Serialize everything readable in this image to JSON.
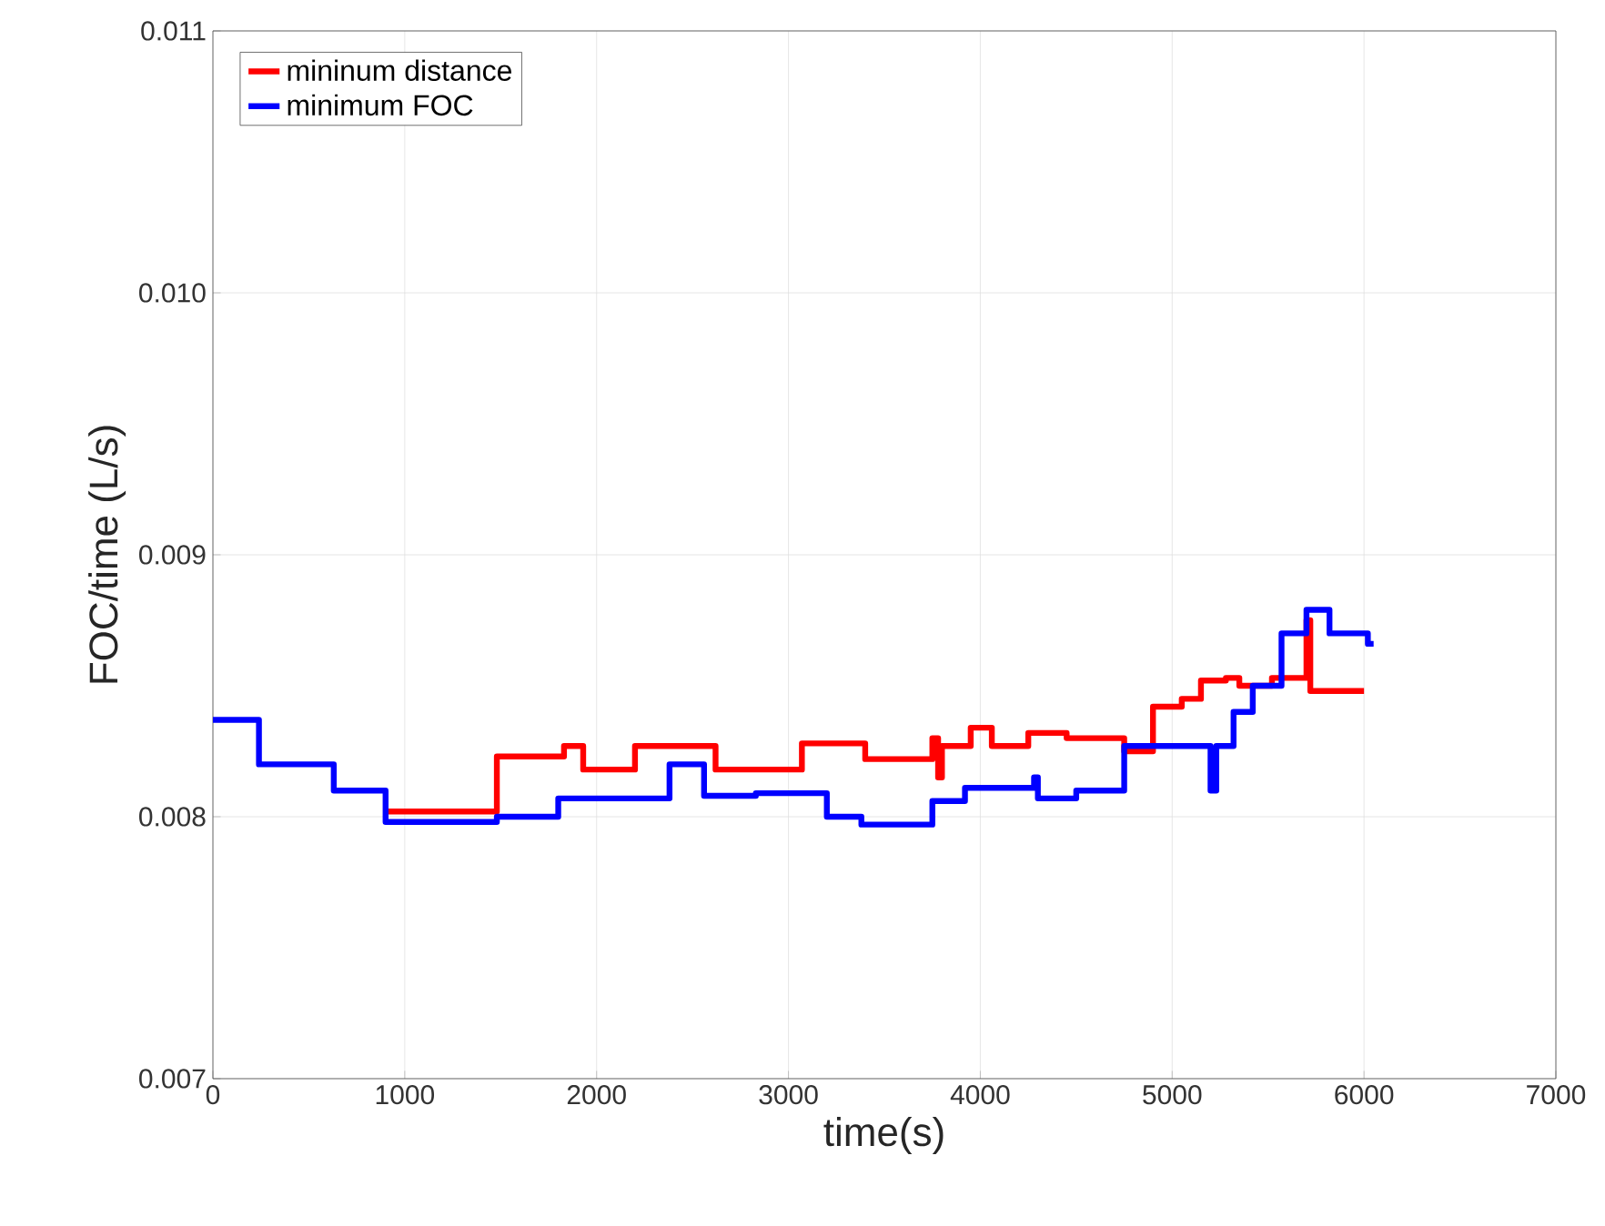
{
  "chart_data": {
    "type": "step",
    "xlabel": "time(s)",
    "ylabel": "FOC/time (L/s)",
    "xlim": [
      0,
      7000
    ],
    "ylim": [
      0.007,
      0.011
    ],
    "xticks": [
      0,
      1000,
      2000,
      3000,
      4000,
      5000,
      6000,
      7000
    ],
    "yticks": [
      {
        "value": 0.007,
        "label": "0.007"
      },
      {
        "value": 0.008,
        "label": "0.008"
      },
      {
        "value": 0.009,
        "label": "0.009"
      },
      {
        "value": 0.01,
        "label": "0.010"
      },
      {
        "value": 0.011,
        "label": "0.011"
      }
    ],
    "grid": true,
    "legend": "top left",
    "marker": "none",
    "line_style": "solid",
    "series": [
      {
        "name": "mininum distance",
        "color": "#ff0000",
        "x": [
          900,
          1480,
          1830,
          1930,
          2200,
          2620,
          3070,
          3400,
          3750,
          3780,
          3800,
          3950,
          4060,
          4250,
          4450,
          4750,
          4900,
          5050,
          5150,
          5280,
          5350,
          5520,
          5700,
          5720,
          6000
        ],
        "values": [
          0.00802,
          0.00823,
          0.00827,
          0.00818,
          0.00827,
          0.00818,
          0.00828,
          0.00822,
          0.0083,
          0.00815,
          0.00827,
          0.00834,
          0.00827,
          0.00832,
          0.0083,
          0.00825,
          0.00842,
          0.00845,
          0.00852,
          0.00853,
          0.0085,
          0.00853,
          0.00875,
          0.00848,
          0.00848
        ]
      },
      {
        "name": "minimum FOC",
        "color": "#0000ff",
        "x": [
          0,
          240,
          630,
          900,
          1480,
          1800,
          2380,
          2560,
          2830,
          3200,
          3380,
          3750,
          3920,
          4280,
          4300,
          4500,
          4750,
          5200,
          5230,
          5320,
          5420,
          5570,
          5700,
          5820,
          6020,
          6050
        ],
        "values": [
          0.00837,
          0.0082,
          0.0081,
          0.00798,
          0.008,
          0.00807,
          0.0082,
          0.00808,
          0.00809,
          0.008,
          0.00797,
          0.00806,
          0.00811,
          0.00815,
          0.00807,
          0.0081,
          0.00827,
          0.0081,
          0.00827,
          0.0084,
          0.0085,
          0.0087,
          0.00879,
          0.0087,
          0.00866,
          0.00866
        ]
      }
    ]
  }
}
